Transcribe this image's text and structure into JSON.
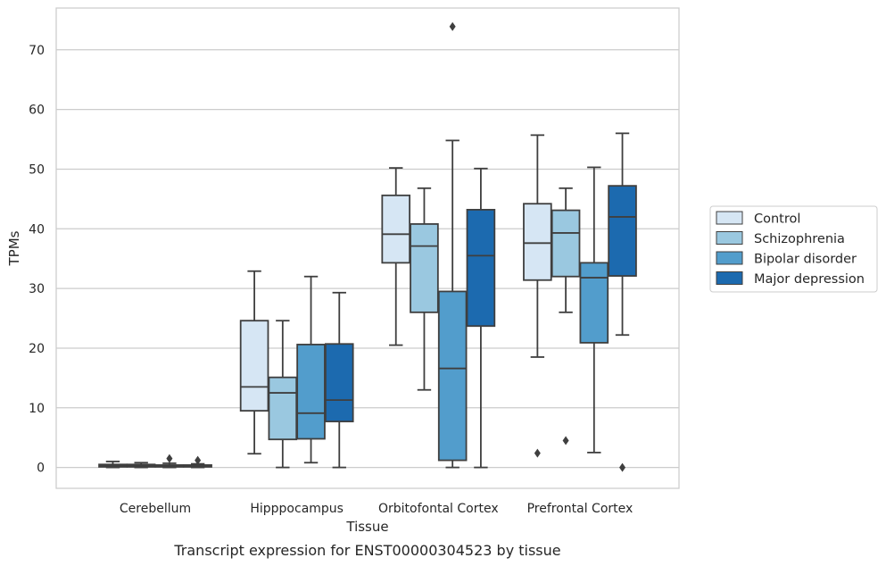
{
  "chart_data": {
    "type": "box",
    "title": "",
    "caption": "Transcript expression for ENST00000304523 by tissue",
    "xlabel": "Tissue",
    "ylabel": "TPMs",
    "ylim": [
      -3.5,
      77
    ],
    "yticks": [
      0,
      10,
      20,
      30,
      40,
      50,
      60,
      70
    ],
    "grid": "horizontal",
    "legend_position": "right",
    "categories": [
      "Cerebellum",
      "Hipppocampus",
      "Orbitofontal Cortex",
      "Prefrontal Cortex"
    ],
    "series": [
      {
        "name": "Control",
        "color": "#d6e6f4",
        "boxes": [
          {
            "whislo": 0.0,
            "q1": 0.1,
            "median": 0.3,
            "q3": 0.5,
            "whishi": 1.0,
            "fliers": []
          },
          {
            "whislo": 2.3,
            "q1": 9.5,
            "median": 13.5,
            "q3": 24.6,
            "whishi": 32.9,
            "fliers": []
          },
          {
            "whislo": 20.5,
            "q1": 34.3,
            "median": 39.1,
            "q3": 45.6,
            "whishi": 50.2,
            "fliers": []
          },
          {
            "whislo": 18.5,
            "q1": 31.4,
            "median": 37.6,
            "q3": 44.2,
            "whishi": 55.7,
            "fliers": [
              2.4
            ]
          }
        ]
      },
      {
        "name": "Schizophrenia",
        "color": "#9ac8e0",
        "boxes": [
          {
            "whislo": 0.0,
            "q1": 0.1,
            "median": 0.3,
            "q3": 0.5,
            "whishi": 0.8,
            "fliers": []
          },
          {
            "whislo": 0.0,
            "q1": 4.7,
            "median": 12.5,
            "q3": 15.1,
            "whishi": 24.6,
            "fliers": []
          },
          {
            "whislo": 13.0,
            "q1": 26.0,
            "median": 37.1,
            "q3": 40.8,
            "whishi": 46.8,
            "fliers": []
          },
          {
            "whislo": 26.0,
            "q1": 32.0,
            "median": 39.3,
            "q3": 43.1,
            "whishi": 46.8,
            "fliers": [
              4.5
            ]
          }
        ]
      },
      {
        "name": "Bipolar disorder",
        "color": "#529dcc",
        "boxes": [
          {
            "whislo": 0.0,
            "q1": 0.1,
            "median": 0.2,
            "q3": 0.4,
            "whishi": 0.7,
            "fliers": [
              1.5
            ]
          },
          {
            "whislo": 0.8,
            "q1": 4.8,
            "median": 9.1,
            "q3": 20.6,
            "whishi": 32.0,
            "fliers": []
          },
          {
            "whislo": 0.0,
            "q1": 1.2,
            "median": 16.6,
            "q3": 29.5,
            "whishi": 54.8,
            "fliers": [
              73.9
            ]
          },
          {
            "whislo": 2.5,
            "q1": 20.9,
            "median": 31.8,
            "q3": 34.3,
            "whishi": 50.3,
            "fliers": []
          }
        ]
      },
      {
        "name": "Major depression",
        "color": "#1c6aaf",
        "boxes": [
          {
            "whislo": 0.0,
            "q1": 0.1,
            "median": 0.2,
            "q3": 0.4,
            "whishi": 0.6,
            "fliers": [
              1.2
            ]
          },
          {
            "whislo": 0.0,
            "q1": 7.7,
            "median": 11.3,
            "q3": 20.7,
            "whishi": 29.3,
            "fliers": []
          },
          {
            "whislo": 0.0,
            "q1": 23.7,
            "median": 35.5,
            "q3": 43.2,
            "whishi": 50.1,
            "fliers": []
          },
          {
            "whislo": 22.2,
            "q1": 32.1,
            "median": 42.0,
            "q3": 47.2,
            "whishi": 56.0,
            "fliers": [
              0.0
            ]
          }
        ]
      }
    ]
  }
}
